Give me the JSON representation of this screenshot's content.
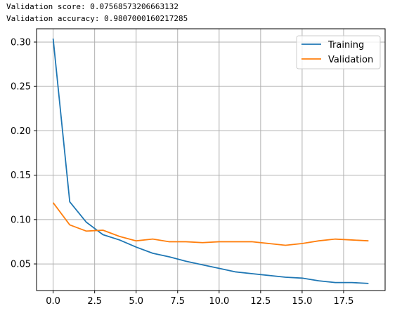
{
  "output": {
    "score_line": "Validation score: 0.07568573206663132",
    "accuracy_line": "Validation accuracy: 0.9807000160217285"
  },
  "chart_data": {
    "type": "line",
    "grid": true,
    "legend_position": "top-right",
    "xlim": [
      -1,
      20
    ],
    "ylim": [
      0.02,
      0.315
    ],
    "xticks": [
      0.0,
      2.5,
      5.0,
      7.5,
      10.0,
      12.5,
      15.0,
      17.5
    ],
    "xtick_labels": [
      "0.0",
      "2.5",
      "5.0",
      "7.5",
      "10.0",
      "12.5",
      "15.0",
      "17.5"
    ],
    "yticks": [
      0.05,
      0.1,
      0.15,
      0.2,
      0.25,
      0.3
    ],
    "ytick_labels": [
      "0.05",
      "0.10",
      "0.15",
      "0.20",
      "0.25",
      "0.30"
    ],
    "x": [
      0,
      1,
      2,
      3,
      4,
      5,
      6,
      7,
      8,
      9,
      10,
      11,
      12,
      13,
      14,
      15,
      16,
      17,
      18,
      19
    ],
    "series": [
      {
        "name": "Training",
        "color": "#1f77b4",
        "values": [
          0.304,
          0.12,
          0.097,
          0.083,
          0.077,
          0.069,
          0.062,
          0.058,
          0.053,
          0.049,
          0.045,
          0.041,
          0.039,
          0.037,
          0.035,
          0.034,
          0.031,
          0.029,
          0.029,
          0.028
        ]
      },
      {
        "name": "Validation",
        "color": "#ff7f0e",
        "values": [
          0.119,
          0.094,
          0.087,
          0.088,
          0.081,
          0.076,
          0.078,
          0.075,
          0.075,
          0.074,
          0.075,
          0.075,
          0.075,
          0.073,
          0.071,
          0.073,
          0.076,
          0.078,
          0.077,
          0.076
        ]
      }
    ]
  }
}
